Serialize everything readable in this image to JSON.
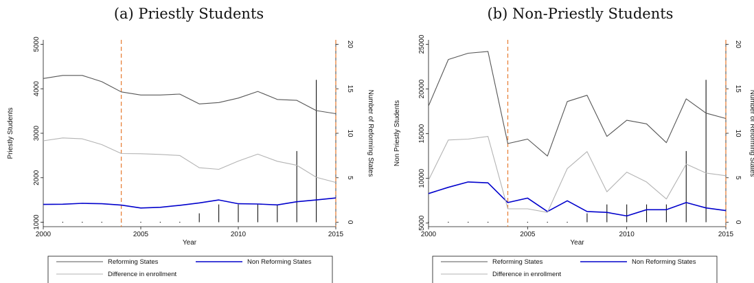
{
  "chart_data": [
    {
      "type": "line",
      "title": "(a) Priestly Students",
      "xlabel": "Year",
      "ylabel": "Priestly Students",
      "y2label": "Number of Reforming States",
      "xlim": [
        2000,
        2015
      ],
      "ylim": [
        900,
        5100
      ],
      "y2lim": [
        -0.5,
        20.5
      ],
      "xticks": [
        "2000",
        "2005",
        "2010",
        "2015"
      ],
      "yticks": [
        "1000",
        "2000",
        "3000",
        "4000",
        "5000"
      ],
      "y2ticks": [
        "0",
        "5",
        "10",
        "15",
        "20"
      ],
      "x": [
        2000,
        2001,
        2002,
        2003,
        2004,
        2005,
        2006,
        2007,
        2008,
        2009,
        2010,
        2011,
        2012,
        2013,
        2014,
        2015
      ],
      "series": [
        {
          "name": "Reforming States",
          "color": "#555555",
          "values": [
            4230,
            4300,
            4300,
            4160,
            3930,
            3860,
            3860,
            3880,
            3660,
            3690,
            3790,
            3940,
            3760,
            3740,
            3510,
            3440
          ]
        },
        {
          "name": "Non Reforming States",
          "color": "#0000cc",
          "values": [
            1400,
            1405,
            1425,
            1415,
            1385,
            1320,
            1335,
            1380,
            1435,
            1500,
            1415,
            1410,
            1390,
            1460,
            1500,
            1545
          ]
        },
        {
          "name": "Difference in enrollment",
          "color": "#b3b3b3",
          "values": [
            2830,
            2895,
            2875,
            2745,
            2545,
            2540,
            2525,
            2500,
            2225,
            2190,
            2375,
            2530,
            2370,
            2280,
            2010,
            1895
          ]
        }
      ],
      "reforming_states": [
        0,
        0,
        0,
        0,
        0,
        0,
        0,
        0,
        1,
        2,
        2,
        2,
        2,
        8,
        16,
        0
      ],
      "vlines": [
        2004,
        2015
      ]
    },
    {
      "type": "line",
      "title": "(b) Non-Priestly Students",
      "xlabel": "Year",
      "ylabel": "Non Priestly Students",
      "y2label": "Number of Reforming States",
      "xlim": [
        2000,
        2015
      ],
      "ylim": [
        4600,
        25500
      ],
      "y2lim": [
        -0.5,
        20.5
      ],
      "xticks": [
        "2000",
        "2005",
        "2010",
        "2015"
      ],
      "yticks": [
        "5000",
        "10000",
        "15000",
        "20000",
        "25000"
      ],
      "y2ticks": [
        "0",
        "5",
        "10",
        "15",
        "20"
      ],
      "x": [
        2000,
        2001,
        2002,
        2003,
        2004,
        2005,
        2006,
        2007,
        2008,
        2009,
        2010,
        2011,
        2012,
        2013,
        2014,
        2015
      ],
      "series": [
        {
          "name": "Reforming States",
          "color": "#555555",
          "values": [
            18100,
            23300,
            24000,
            24200,
            13900,
            14400,
            12500,
            18600,
            19300,
            14700,
            16500,
            16100,
            14000,
            18900,
            17300,
            16700
          ]
        },
        {
          "name": "Non Reforming States",
          "color": "#0000cc",
          "values": [
            8300,
            9000,
            9600,
            9500,
            7300,
            7800,
            6300,
            7500,
            6300,
            6200,
            5800,
            6500,
            6500,
            7300,
            6700,
            6400
          ]
        },
        {
          "name": "Difference in enrollment",
          "color": "#b3b3b3",
          "values": [
            9800,
            14300,
            14400,
            14700,
            6600,
            6600,
            6200,
            11100,
            13000,
            8500,
            10700,
            9600,
            7700,
            11600,
            10600,
            10300
          ]
        }
      ],
      "reforming_states": [
        0,
        0,
        0,
        0,
        0,
        0,
        0,
        0,
        1,
        2,
        2,
        2,
        2,
        8,
        16,
        0
      ],
      "vlines": [
        2004,
        2015
      ]
    }
  ]
}
